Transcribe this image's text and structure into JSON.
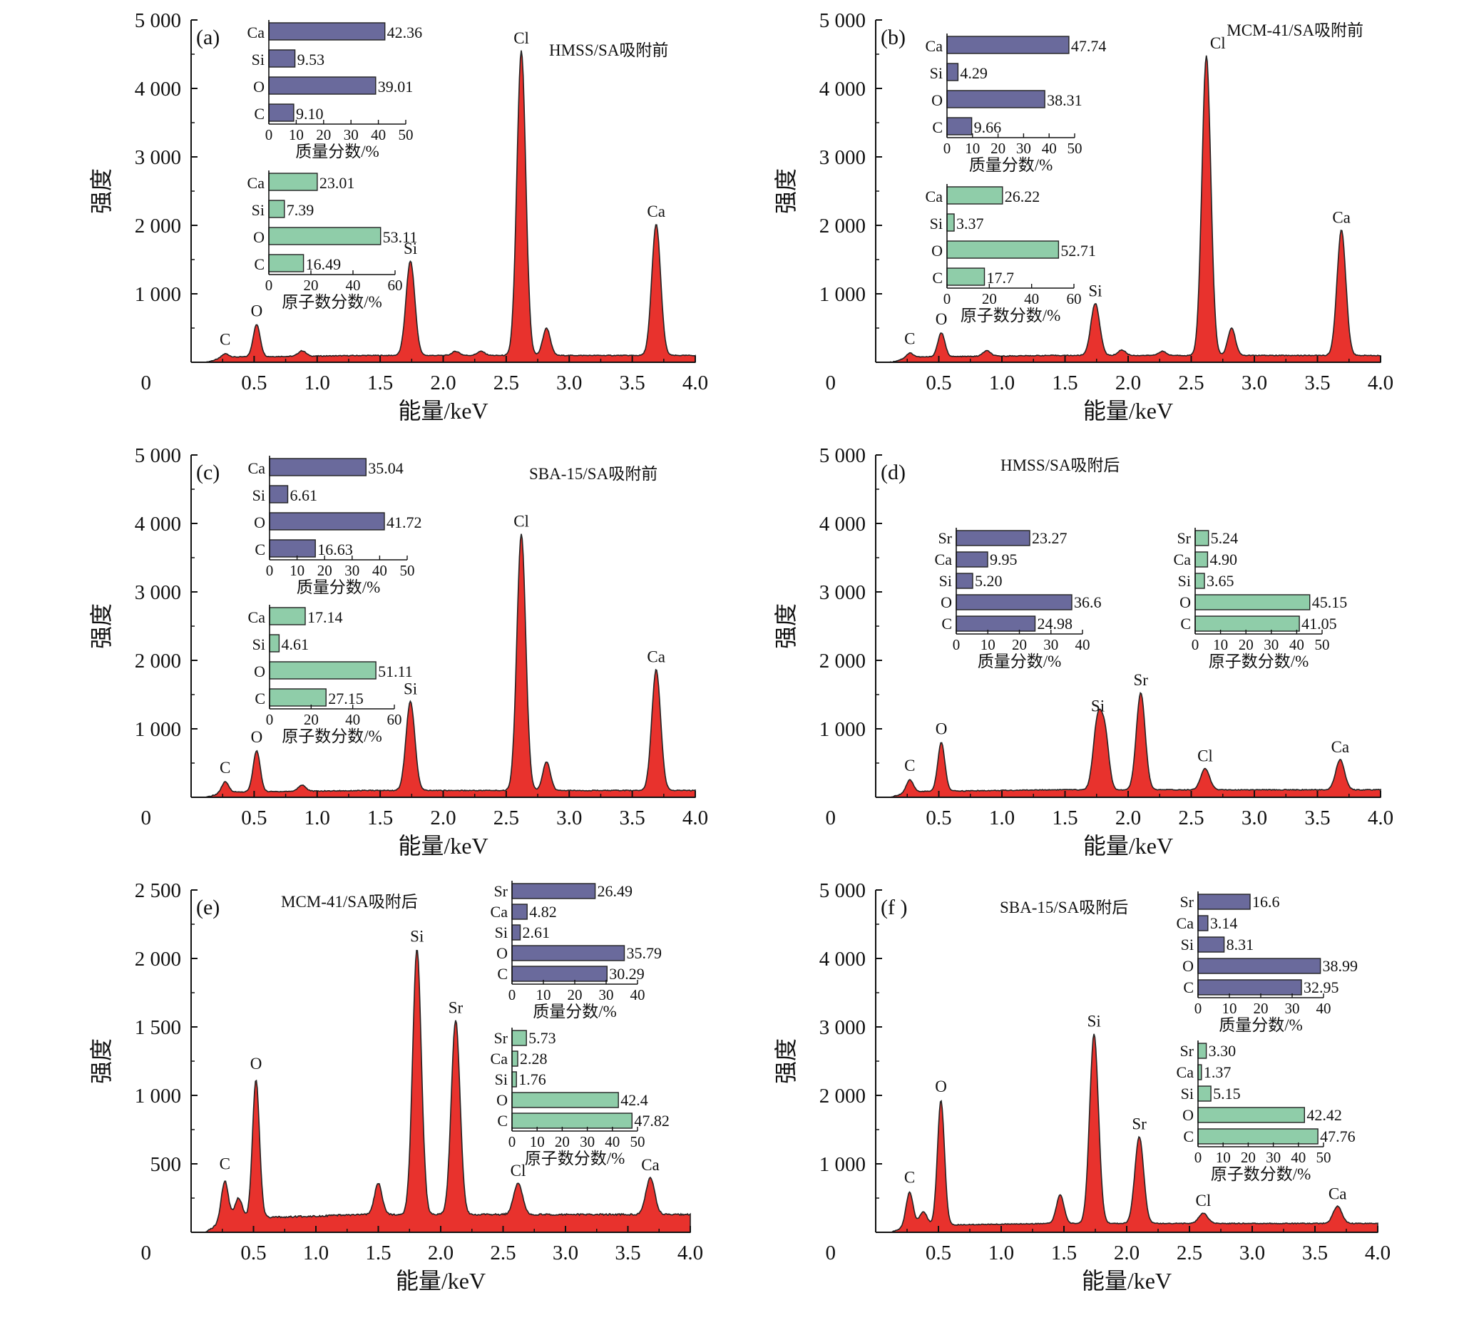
{
  "colors": {
    "spectrum_fill": "#e8322d",
    "spectrum_line": "#222222",
    "mass_bar": "#6a6a9c",
    "atomic_bar": "#8fcda9"
  },
  "x_axis": {
    "label": "能量/keV",
    "ticks": [
      "0.5",
      "1.0",
      "1.5",
      "2.0",
      "2.5",
      "3.0",
      "3.5",
      "4.0"
    ],
    "origin_label": "0",
    "range": [
      0,
      4.0
    ]
  },
  "y_axis_label": "强度",
  "chart_data": [
    {
      "type": "area",
      "panel": "(a)",
      "title": "HMSS/SA吸附前",
      "xlabel": "能量/keV",
      "ylabel": "强度",
      "xlim": [
        0,
        4.0
      ],
      "ylim": [
        0,
        5000
      ],
      "y_ticks": [
        1000,
        2000,
        3000,
        4000,
        5000
      ],
      "y_tick_labels": [
        "1 000",
        "2 000",
        "3 000",
        "4 000",
        "5 000"
      ],
      "baseline": 100,
      "peaks": [
        {
          "label": "C",
          "x": 0.27,
          "y": 150
        },
        {
          "label": "O",
          "x": 0.52,
          "y": 570
        },
        {
          "label": "Si",
          "x": 1.74,
          "y": 1480
        },
        {
          "label": "Cl",
          "x": 2.62,
          "y": 4550
        },
        {
          "label": "Ca",
          "x": 3.69,
          "y": 2020
        }
      ],
      "minor_peaks": [
        {
          "x": 0.88,
          "y": 80
        },
        {
          "x": 2.82,
          "y": 400
        },
        {
          "x": 2.1,
          "y": 60
        },
        {
          "x": 2.3,
          "y": 60
        }
      ],
      "insets": [
        {
          "kind": "mass",
          "title": "质量分数/%",
          "labels": [
            "Ca",
            "Si",
            "O",
            "C"
          ],
          "values": [
            42.36,
            9.53,
            39.01,
            9.1
          ],
          "value_labels": [
            "42.36",
            "9.53",
            "39.01",
            "9.10"
          ],
          "max": 50,
          "ticks": [
            "0",
            "10",
            "20",
            "30",
            "40",
            "50"
          ]
        },
        {
          "kind": "atomic",
          "title": "原子数分数/%",
          "labels": [
            "Ca",
            "Si",
            "O",
            "C"
          ],
          "values": [
            23.01,
            7.39,
            53.11,
            16.49
          ],
          "value_labels": [
            "23.01",
            "7.39",
            "53.11",
            "16.49"
          ],
          "max": 60,
          "ticks": [
            "0",
            "20",
            "40",
            "60"
          ]
        }
      ]
    },
    {
      "type": "area",
      "panel": "(b)",
      "title": "MCM-41/SA吸附前",
      "xlabel": "能量/keV",
      "ylabel": "强度",
      "xlim": [
        0,
        4.0
      ],
      "ylim": [
        0,
        5000
      ],
      "y_ticks": [
        1000,
        2000,
        3000,
        4000,
        5000
      ],
      "y_tick_labels": [
        "1 000",
        "2 000",
        "3 000",
        "4 000",
        "5 000"
      ],
      "baseline": 100,
      "peaks": [
        {
          "label": "C",
          "x": 0.27,
          "y": 160
        },
        {
          "label": "O",
          "x": 0.52,
          "y": 450
        },
        {
          "label": "Si",
          "x": 1.74,
          "y": 860
        },
        {
          "label": "Cl",
          "x": 2.62,
          "y": 4480
        },
        {
          "label": "Ca",
          "x": 3.69,
          "y": 1930
        }
      ],
      "minor_peaks": [
        {
          "x": 0.88,
          "y": 80
        },
        {
          "x": 2.82,
          "y": 400
        },
        {
          "x": 1.95,
          "y": 80
        },
        {
          "x": 2.27,
          "y": 60
        }
      ],
      "insets": [
        {
          "kind": "mass",
          "title": "质量分数/%",
          "labels": [
            "Ca",
            "Si",
            "O",
            "C"
          ],
          "values": [
            47.74,
            4.29,
            38.31,
            9.66
          ],
          "value_labels": [
            "47.74",
            "4.29",
            "38.31",
            "9.66"
          ],
          "max": 50,
          "ticks": [
            "0",
            "10",
            "20",
            "30",
            "40",
            "50"
          ]
        },
        {
          "kind": "atomic",
          "title": "原子数分数/%",
          "labels": [
            "Ca",
            "Si",
            "O",
            "C"
          ],
          "values": [
            26.22,
            3.37,
            52.71,
            17.7
          ],
          "value_labels": [
            "26.22",
            "3.37",
            "52.71",
            "17.7"
          ],
          "max": 60,
          "ticks": [
            "0",
            "20",
            "40",
            "60"
          ]
        }
      ]
    },
    {
      "type": "area",
      "panel": "(c)",
      "title": "SBA-15/SA吸附前",
      "xlabel": "能量/keV",
      "ylabel": "强度",
      "xlim": [
        0,
        4.0
      ],
      "ylim": [
        0,
        5000
      ],
      "y_ticks": [
        1000,
        2000,
        3000,
        4000,
        5000
      ],
      "y_tick_labels": [
        "1 000",
        "2 000",
        "3 000",
        "4 000",
        "5 000"
      ],
      "baseline": 100,
      "peaks": [
        {
          "label": "C",
          "x": 0.27,
          "y": 250
        },
        {
          "label": "O",
          "x": 0.52,
          "y": 700
        },
        {
          "label": "Si",
          "x": 1.74,
          "y": 1400
        },
        {
          "label": "Cl",
          "x": 2.62,
          "y": 3850
        },
        {
          "label": "Ca",
          "x": 3.69,
          "y": 1870
        }
      ],
      "minor_peaks": [
        {
          "x": 0.88,
          "y": 90
        },
        {
          "x": 2.82,
          "y": 420
        }
      ],
      "insets": [
        {
          "kind": "mass",
          "title": "质量分数/%",
          "labels": [
            "Ca",
            "Si",
            "O",
            "C"
          ],
          "values": [
            35.04,
            6.61,
            41.72,
            16.63
          ],
          "value_labels": [
            "35.04",
            "6.61",
            "41.72",
            "16.63"
          ],
          "max": 50,
          "ticks": [
            "0",
            "10",
            "20",
            "30",
            "40",
            "50"
          ]
        },
        {
          "kind": "atomic",
          "title": "原子数分数/%",
          "labels": [
            "Ca",
            "Si",
            "O",
            "C"
          ],
          "values": [
            17.14,
            4.61,
            51.11,
            27.15
          ],
          "value_labels": [
            "17.14",
            "4.61",
            "51.11",
            "27.15"
          ],
          "max": 60,
          "ticks": [
            "0",
            "20",
            "40",
            "60"
          ]
        }
      ]
    },
    {
      "type": "area",
      "panel": "(d)",
      "title": "HMSS/SA吸附后",
      "xlabel": "能量/keV",
      "ylabel": "强度",
      "xlim": [
        0,
        4.0
      ],
      "ylim": [
        0,
        5000
      ],
      "y_ticks": [
        1000,
        2000,
        3000,
        4000,
        5000
      ],
      "y_tick_labels": [
        "1 000",
        "2 000",
        "3 000",
        "4 000",
        "5 000"
      ],
      "baseline": 110,
      "peaks": [
        {
          "label": "C",
          "x": 0.27,
          "y": 280
        },
        {
          "label": "O",
          "x": 0.52,
          "y": 820
        },
        {
          "label": "Si",
          "x": 1.76,
          "y": 1150
        },
        {
          "label": "Sr",
          "x": 2.1,
          "y": 1530
        },
        {
          "label": "Cl",
          "x": 2.61,
          "y": 420
        },
        {
          "label": "Ca",
          "x": 3.68,
          "y": 550
        }
      ],
      "minor_peaks": [
        {
          "x": 1.82,
          "y": 700
        }
      ],
      "insets": [
        {
          "kind": "mass",
          "title": "质量分数/%",
          "labels": [
            "Sr",
            "Ca",
            "Si",
            "O",
            "C"
          ],
          "values": [
            23.27,
            9.95,
            5.2,
            36.6,
            24.98
          ],
          "value_labels": [
            "23.27",
            "9.95",
            "5.20",
            "36.6",
            "24.98"
          ],
          "max": 40,
          "ticks": [
            "0",
            "10",
            "20",
            "30",
            "40"
          ]
        },
        {
          "kind": "atomic",
          "title": "原子数分数/%",
          "labels": [
            "Sr",
            "Ca",
            "Si",
            "O",
            "C"
          ],
          "values": [
            5.24,
            4.9,
            3.65,
            45.15,
            41.05
          ],
          "value_labels": [
            "5.24",
            "4.90",
            "3.65",
            "45.15",
            "41.05"
          ],
          "max": 50,
          "ticks": [
            "0",
            "10",
            "20",
            "30",
            "40",
            "50"
          ]
        }
      ]
    },
    {
      "type": "area",
      "panel": "(e)",
      "title": "MCM-41/SA吸附后",
      "xlabel": "能量/keV",
      "ylabel": "强度",
      "xlim": [
        0,
        4.0
      ],
      "ylim": [
        0,
        2500
      ],
      "y_ticks": [
        500,
        1000,
        1500,
        2000,
        2500
      ],
      "y_tick_labels": [
        "500",
        "1 000",
        "1 500",
        "2 000",
        "2 500"
      ],
      "baseline": 130,
      "peaks": [
        {
          "label": "C",
          "x": 0.27,
          "y": 410
        },
        {
          "label": "O",
          "x": 0.52,
          "y": 1140
        },
        {
          "label": "Si",
          "x": 1.81,
          "y": 2070
        },
        {
          "label": "Sr",
          "x": 2.12,
          "y": 1550
        },
        {
          "label": "Cl",
          "x": 2.62,
          "y": 360
        },
        {
          "label": "Ca",
          "x": 3.68,
          "y": 400
        }
      ],
      "minor_peaks": [
        {
          "x": 1.5,
          "y": 230
        },
        {
          "x": 0.38,
          "y": 150
        }
      ],
      "insets": [
        {
          "kind": "mass",
          "title": "质量分数/%",
          "labels": [
            "Sr",
            "Ca",
            "Si",
            "O",
            "C"
          ],
          "values": [
            26.49,
            4.82,
            2.61,
            35.79,
            30.29
          ],
          "value_labels": [
            "26.49",
            "4.82",
            "2.61",
            "35.79",
            "30.29"
          ],
          "max": 40,
          "ticks": [
            "0",
            "10",
            "20",
            "30",
            "40"
          ]
        },
        {
          "kind": "atomic",
          "title": "原子数分数/%",
          "labels": [
            "Sr",
            "Ca",
            "Si",
            "O",
            "C"
          ],
          "values": [
            5.73,
            2.28,
            1.76,
            42.4,
            47.82
          ],
          "value_labels": [
            "5.73",
            "2.28",
            "1.76",
            "42.4",
            "47.82"
          ],
          "max": 50,
          "ticks": [
            "0",
            "10",
            "20",
            "30",
            "40",
            "50"
          ]
        }
      ]
    },
    {
      "type": "area",
      "panel": "(f )",
      "title": "SBA-15/SA吸附后",
      "xlabel": "能量/keV",
      "ylabel": "强度",
      "xlim": [
        0,
        4.0
      ],
      "ylim": [
        0,
        5000
      ],
      "y_ticks": [
        1000,
        2000,
        3000,
        4000,
        5000
      ],
      "y_tick_labels": [
        "1 000",
        "2 000",
        "3 000",
        "4 000",
        "5 000"
      ],
      "baseline": 130,
      "peaks": [
        {
          "label": "C",
          "x": 0.27,
          "y": 620
        },
        {
          "label": "O",
          "x": 0.52,
          "y": 1950
        },
        {
          "label": "Si",
          "x": 1.74,
          "y": 2900
        },
        {
          "label": "Sr",
          "x": 2.1,
          "y": 1400
        },
        {
          "label": "Cl",
          "x": 2.61,
          "y": 280
        },
        {
          "label": "Ca",
          "x": 3.68,
          "y": 380
        }
      ],
      "minor_peaks": [
        {
          "x": 1.47,
          "y": 420
        },
        {
          "x": 0.38,
          "y": 200
        }
      ],
      "insets": [
        {
          "kind": "mass",
          "title": "质量分数/%",
          "labels": [
            "Sr",
            "Ca",
            "Si",
            "O",
            "C"
          ],
          "values": [
            16.6,
            3.14,
            8.31,
            38.99,
            32.95
          ],
          "value_labels": [
            "16.6",
            "3.14",
            "8.31",
            "38.99",
            "32.95"
          ],
          "max": 40,
          "ticks": [
            "0",
            "10",
            "20",
            "30",
            "40"
          ]
        },
        {
          "kind": "atomic",
          "title": "原子数分数/%",
          "labels": [
            "Sr",
            "Ca",
            "Si",
            "O",
            "C"
          ],
          "values": [
            3.3,
            1.37,
            5.15,
            42.42,
            47.76
          ],
          "value_labels": [
            "3.30",
            "1.37",
            "5.15",
            "42.42",
            "47.76"
          ],
          "max": 50,
          "ticks": [
            "0",
            "10",
            "20",
            "30",
            "40",
            "50"
          ]
        }
      ]
    }
  ]
}
